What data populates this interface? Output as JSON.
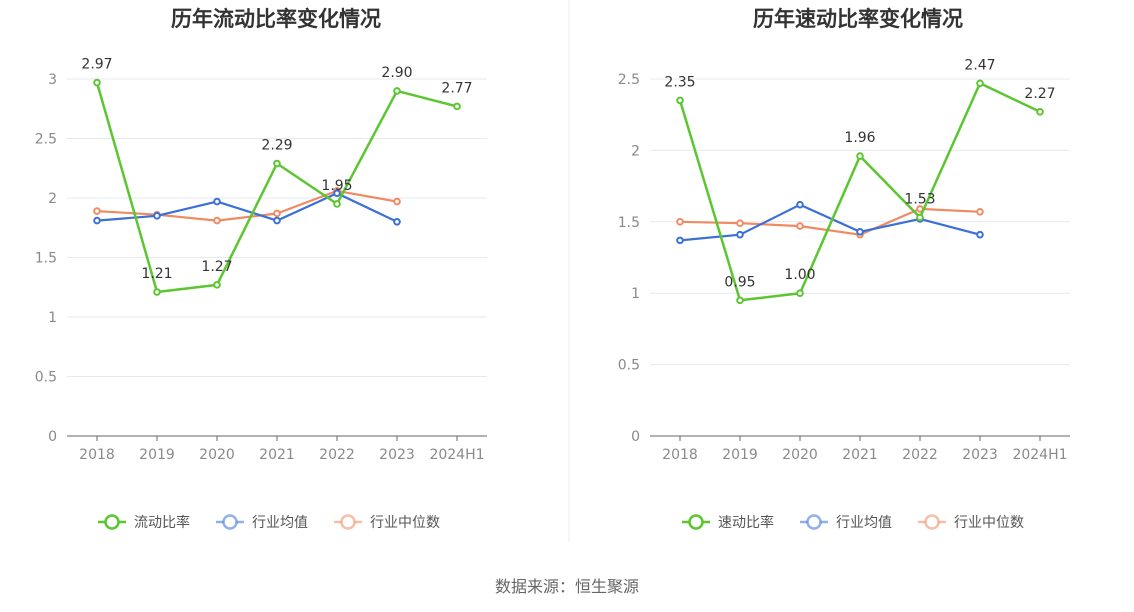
{
  "source_note": "数据来源：恒生聚源",
  "colors": {
    "main": "#5cc630",
    "avg": "#3b6fd8",
    "median": "#ef8a62",
    "grid": "#e6e9f0",
    "axis": "#666666"
  },
  "chart_data": [
    {
      "type": "line",
      "title": "历年流动比率变化情况",
      "categories": [
        "2018",
        "2019",
        "2020",
        "2021",
        "2022",
        "2023",
        "2024H1"
      ],
      "ylim": [
        0,
        3
      ],
      "yticks": [
        "0",
        "0.5",
        "1",
        "1.5",
        "2",
        "2.5",
        "3"
      ],
      "legend_position": "bottom",
      "series": [
        {
          "name": "流动比率",
          "values": [
            2.97,
            1.21,
            1.27,
            2.29,
            1.95,
            2.9,
            2.77
          ],
          "labels": [
            "2.97",
            "1.21",
            "1.27",
            "2.29",
            "1.95",
            "2.90",
            "2.77"
          ]
        },
        {
          "name": "行业均值",
          "values": [
            1.81,
            1.85,
            1.97,
            1.81,
            2.04,
            1.8,
            null
          ]
        },
        {
          "name": "行业中位数",
          "values": [
            1.89,
            1.86,
            1.81,
            1.87,
            2.06,
            1.97,
            null
          ]
        }
      ]
    },
    {
      "type": "line",
      "title": "历年速动比率变化情况",
      "categories": [
        "2018",
        "2019",
        "2020",
        "2021",
        "2022",
        "2023",
        "2024H1"
      ],
      "ylim": [
        0,
        2.5
      ],
      "yticks": [
        "0",
        "0.5",
        "1",
        "1.5",
        "2",
        "2.5"
      ],
      "legend_position": "bottom",
      "series": [
        {
          "name": "速动比率",
          "values": [
            2.35,
            0.95,
            1.0,
            1.96,
            1.53,
            2.47,
            2.27
          ],
          "labels": [
            "2.35",
            "0.95",
            "1.00",
            "1.96",
            "1.53",
            "2.47",
            "2.27"
          ]
        },
        {
          "name": "行业均值",
          "values": [
            1.37,
            1.41,
            1.62,
            1.43,
            1.52,
            1.41,
            null
          ]
        },
        {
          "name": "行业中位数",
          "values": [
            1.5,
            1.49,
            1.47,
            1.41,
            1.59,
            1.57,
            null
          ]
        }
      ]
    }
  ]
}
